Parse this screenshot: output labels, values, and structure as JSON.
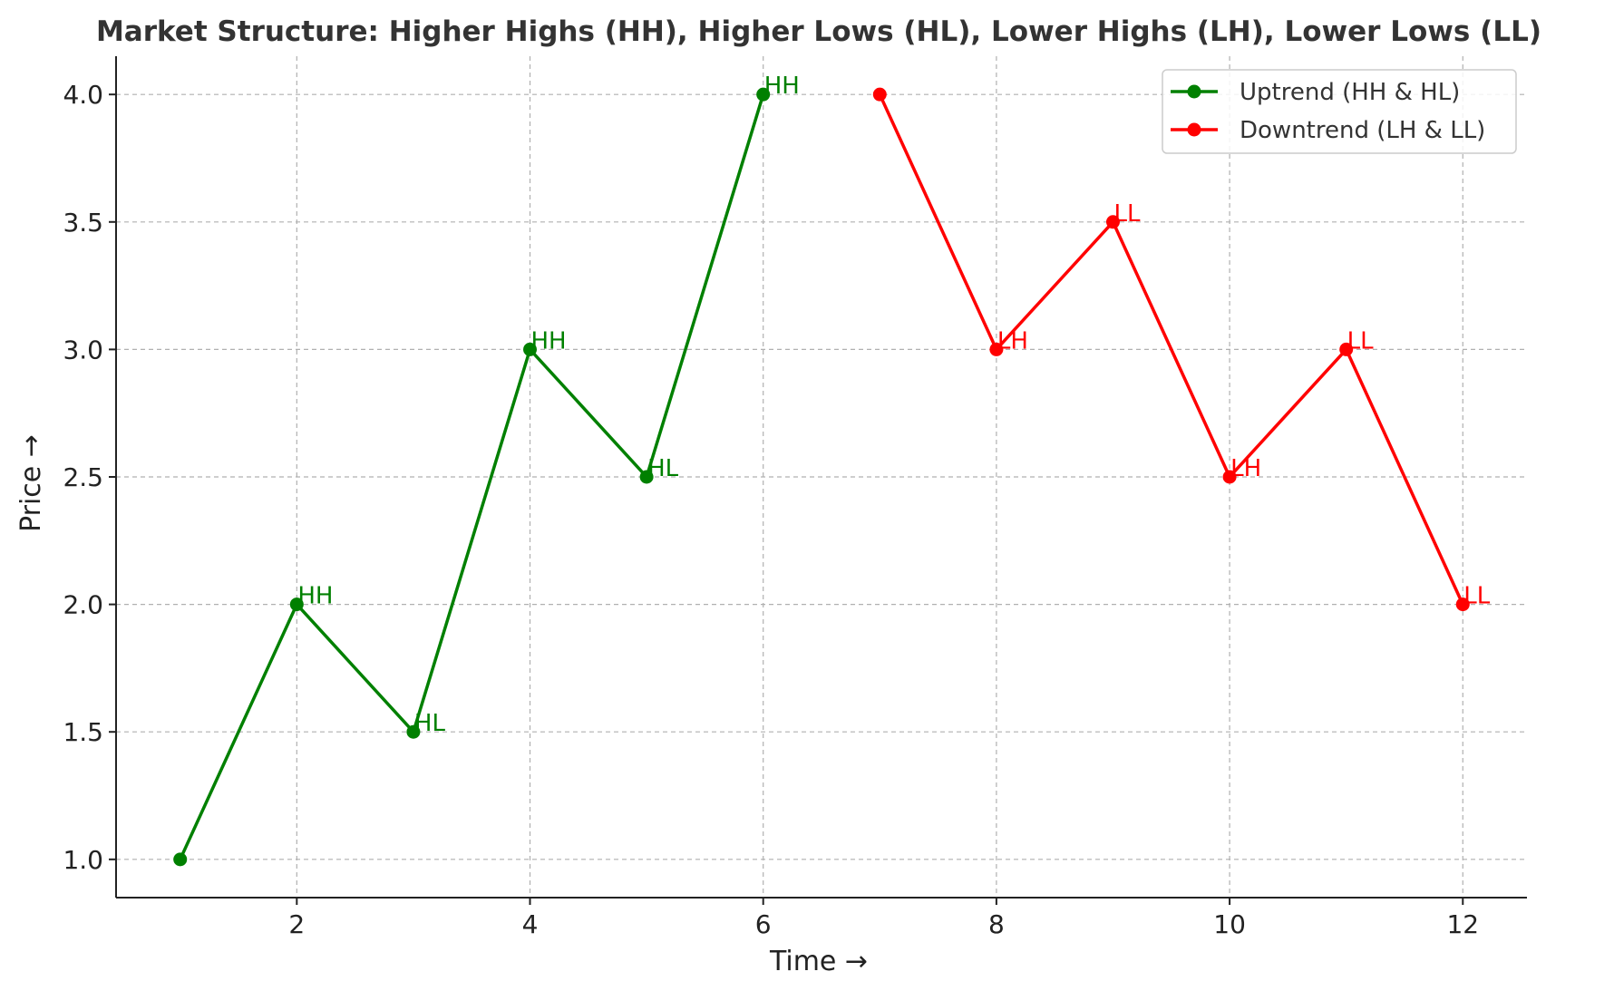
{
  "chart_data": {
    "type": "line",
    "title": "Market Structure: Higher Highs (HH), Higher Lows (HL), Lower Highs (LH), Lower Lows (LL)",
    "xlabel": "Time →",
    "ylabel": "Price →",
    "xlim": [
      0.45,
      12.55
    ],
    "ylim": [
      0.85,
      4.15
    ],
    "x_ticks": [
      2,
      4,
      6,
      8,
      10,
      12
    ],
    "y_ticks": [
      1.0,
      1.5,
      2.0,
      2.5,
      3.0,
      3.5,
      4.0
    ],
    "x_tick_labels": [
      "2",
      "4",
      "6",
      "8",
      "10",
      "12"
    ],
    "y_tick_labels": [
      "1.0",
      "1.5",
      "2.0",
      "2.5",
      "3.0",
      "3.5",
      "4.0"
    ],
    "grid": true,
    "legend_position": "top-right",
    "series": [
      {
        "name": "Uptrend (HH & HL)",
        "color": "#008000",
        "x": [
          1,
          2,
          3,
          4,
          5,
          6
        ],
        "y": [
          1.0,
          2.0,
          1.5,
          3.0,
          2.5,
          4.0
        ],
        "labels": [
          "",
          "HH",
          "HL",
          "HH",
          "HL",
          "HH"
        ]
      },
      {
        "name": "Downtrend (LH & LL)",
        "color": "#ff0000",
        "x": [
          7,
          8,
          9,
          10,
          11,
          12
        ],
        "y": [
          4.0,
          3.0,
          3.5,
          2.5,
          3.0,
          2.0
        ],
        "labels": [
          "",
          "LH",
          "LL",
          "LH",
          "LL",
          "LL"
        ]
      }
    ]
  }
}
